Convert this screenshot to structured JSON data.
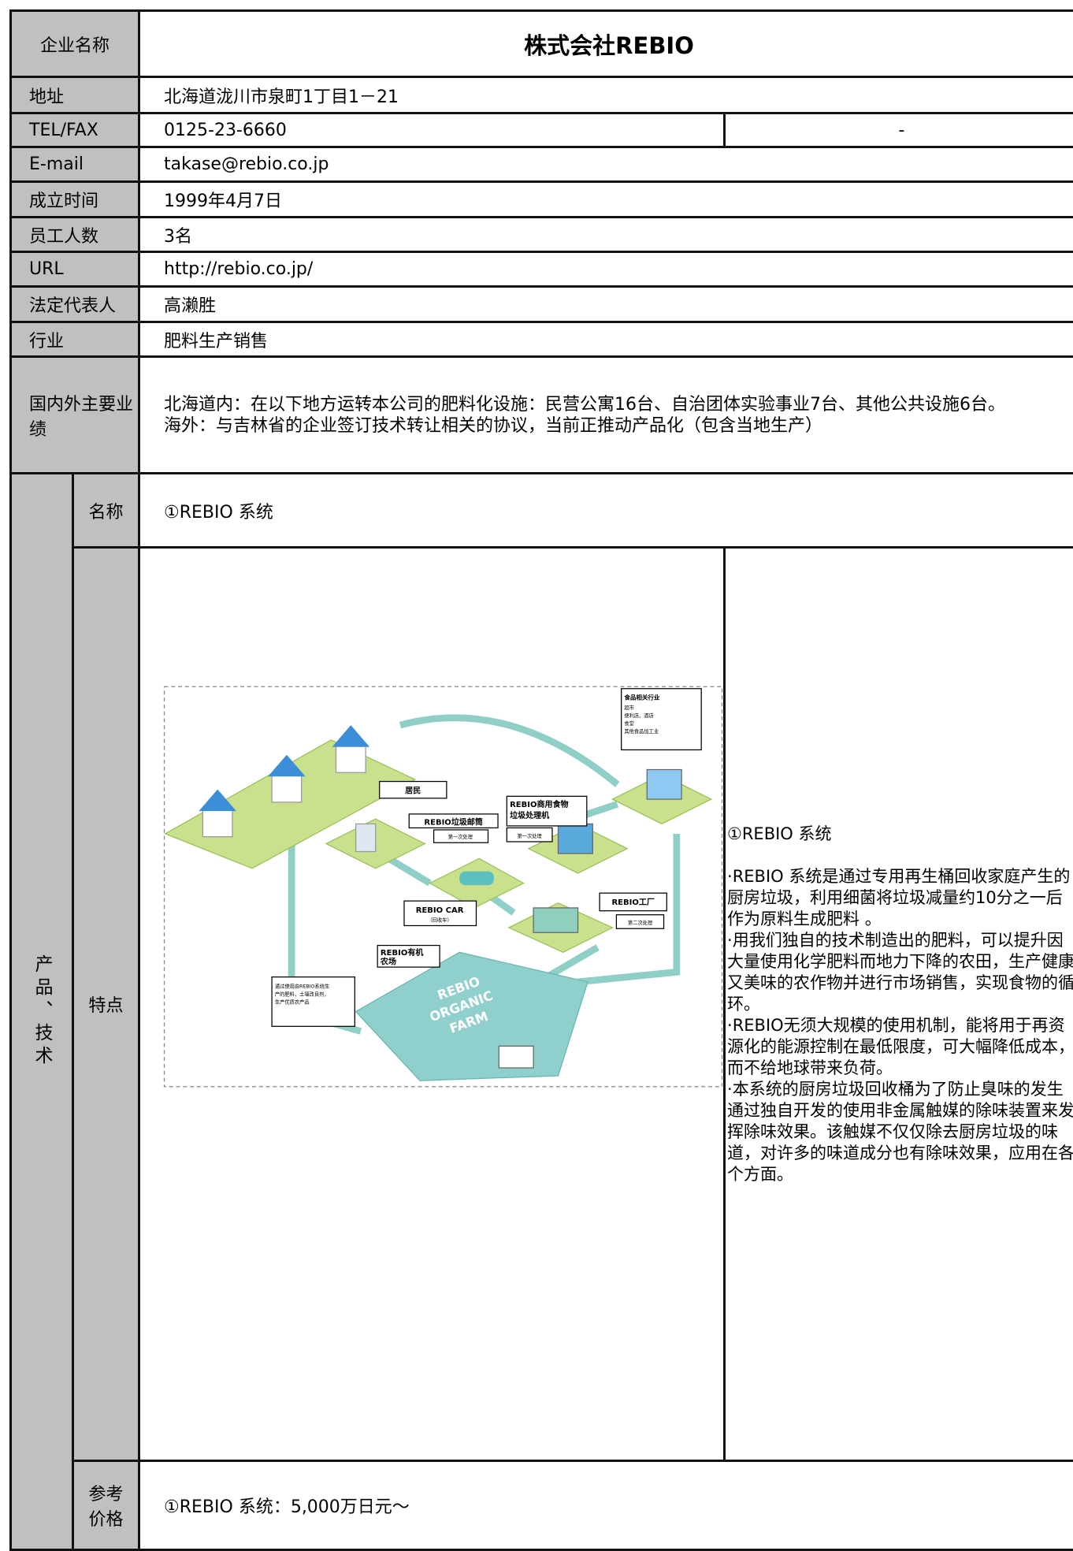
{
  "company": {
    "label": "企业名称",
    "value": "株式会社REBIO"
  },
  "rows": [
    {
      "label": "地址",
      "value": "北海道泷川市泉町1丁目1－21"
    },
    {
      "label": "TEL/FAX",
      "value": "0125-23-6660",
      "value2": "-"
    },
    {
      "label": "E-mail",
      "value": "takase@rebio.co.jp"
    },
    {
      "label": "成立时间",
      "value": "1999年4月7日"
    },
    {
      "label": "员工人数",
      "value": "3名"
    },
    {
      "label": "URL",
      "value": "http://rebio.co.jp/"
    },
    {
      "label": "法定代表人",
      "value": "高濑胜"
    },
    {
      "label": "行业",
      "value": "肥料生产销售"
    }
  ],
  "achievements": {
    "label": "国内外主要业绩",
    "lines": [
      "北海道内：在以下地方运转本公司的肥料化设施：民营公寓16台、自治团体实验事业7台、其他公共设施6台。",
      "海外：与吉林省的企业签订技术转让相关的协议，当前正推动产品化（包含当地生产）"
    ]
  },
  "product": {
    "section_label": "产品、技术",
    "name": {
      "label": "名称",
      "value": "①REBIO 系统"
    },
    "features": {
      "label": "特点",
      "diagram": {
        "residents": "居民",
        "mailbox": "REBIO垃圾邮筒",
        "mailbox_stage": "第一次处理",
        "machine": [
          "REBIO商用食物",
          "垃圾处理机"
        ],
        "machine_stage": "第一次处理",
        "food_industry": [
          "食品相关行业",
          "超市",
          "便利店、酒店",
          "食堂",
          "其他食品加工业"
        ],
        "car": [
          "REBIO CAR",
          "（回收车）"
        ],
        "factory": "REBIO工厂",
        "factory_stage": "第二次处理",
        "farm_label": [
          "REBIO有机",
          "农场"
        ],
        "farm_note": [
          "通过使用由REBIO系统生",
          "产的肥料，土壤改良剂，",
          "生产优质农产品"
        ],
        "farm_sign": [
          "REBIO",
          "ORGANIC",
          "FARM"
        ]
      },
      "description": {
        "title": "①REBIO 系统",
        "paragraphs": [
          "·REBIO 系统是通过专用再生桶回收家庭产生的厨房垃圾，利用细菌将垃圾减量约10分之一后作为原料生成肥料 。",
          "·用我们独自的技术制造出的肥料，可以提升因大量使用化学肥料而地力下降的农田，生产健康又美味的农作物并进行市场销售，实现食物的循环。",
          "·REBIO无须大规模的使用机制，能将用于再资源化的能源控制在最低限度，可大幅降低成本，而不给地球带来负荷。",
          "·本系统的厨房垃圾回收桶为了防止臭味的发生通过独自开发的使用非金属触媒的除味装置来发挥除味效果。该触媒不仅仅除去厨房垃圾的味道，对许多的味道成分也有除味效果，应用在各个方面。"
        ]
      }
    },
    "price": {
      "label": "参考价格",
      "value": "①REBIO 系统：5,000万日元～"
    }
  }
}
